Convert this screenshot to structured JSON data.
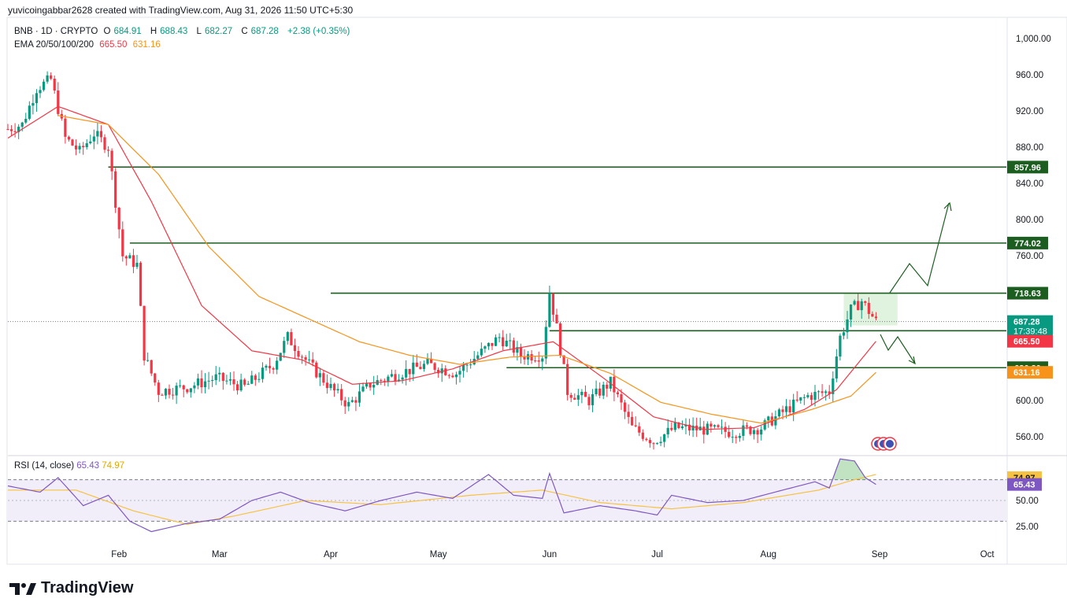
{
  "header": {
    "attribution": "yuvicoingabbar2628 created with TradingView.com, Aug 31, 2026 11:50 UTC+5:30"
  },
  "legend": {
    "symbol": "BNB · 1D · CRYPTO",
    "o_label": "O",
    "o_value": "684.91",
    "h_label": "H",
    "h_value": "688.43",
    "l_label": "L",
    "l_value": "682.27",
    "c_label": "C",
    "c_value": "687.28",
    "change": "+2.38 (+0.35%)",
    "ema_label": "EMA 20/50/100/200",
    "ema1": "665.50",
    "ema2": "631.16"
  },
  "rsi_legend": {
    "label": "RSI (14, close)",
    "rsi": "65.43",
    "ma": "74.97"
  },
  "branding": {
    "name": "TradingView"
  },
  "colors": {
    "up": "#089981",
    "down": "#f23645",
    "ema_fast": "#f23645",
    "ema_slow": "#f7931a",
    "level": "#1b5e20",
    "rsi": "#7e57c2",
    "rsi_ma": "#f5c242",
    "zone": "#d8f0d6"
  },
  "chart_data": [
    {
      "type": "candlestick",
      "symbol": "BNB · 1D · CRYPTO",
      "x_tick_labels": [
        "Feb",
        "Mar",
        "Apr",
        "May",
        "Jun",
        "Jul",
        "Aug",
        "Sep",
        "Oct"
      ],
      "y_tick_labels": [
        "1,000.00",
        "960.00",
        "920.00",
        "880.00",
        "840.00",
        "800.00",
        "760.00",
        "600.00",
        "560.00"
      ],
      "ylim": [
        520,
        1000
      ],
      "close_path": [
        {
          "x": "Jan 01",
          "y": 900
        },
        {
          "x": "Jan 05",
          "y": 905
        },
        {
          "x": "Jan 09",
          "y": 945
        },
        {
          "x": "Jan 13",
          "y": 955
        },
        {
          "x": "Jan 17",
          "y": 890
        },
        {
          "x": "Jan 21",
          "y": 875
        },
        {
          "x": "Jan 25",
          "y": 895
        },
        {
          "x": "Jan 29",
          "y": 880
        },
        {
          "x": "Feb 02",
          "y": 760
        },
        {
          "x": "Feb 06",
          "y": 750
        },
        {
          "x": "Feb 08",
          "y": 650
        },
        {
          "x": "Feb 12",
          "y": 610
        },
        {
          "x": "Feb 20",
          "y": 615
        },
        {
          "x": "Feb 28",
          "y": 625
        },
        {
          "x": "Mar 08",
          "y": 615
        },
        {
          "x": "Mar 16",
          "y": 640
        },
        {
          "x": "Mar 20",
          "y": 670
        },
        {
          "x": "Mar 26",
          "y": 640
        },
        {
          "x": "Apr 02",
          "y": 610
        },
        {
          "x": "Apr 06",
          "y": 595
        },
        {
          "x": "Apr 12",
          "y": 618
        },
        {
          "x": "Apr 20",
          "y": 630
        },
        {
          "x": "Apr 28",
          "y": 640
        },
        {
          "x": "May 06",
          "y": 630
        },
        {
          "x": "May 12",
          "y": 650
        },
        {
          "x": "May 18",
          "y": 670
        },
        {
          "x": "May 24",
          "y": 650
        },
        {
          "x": "May 30",
          "y": 650
        },
        {
          "x": "Jun 01",
          "y": 720
        },
        {
          "x": "Jun 03",
          "y": 680
        },
        {
          "x": "Jun 06",
          "y": 610
        },
        {
          "x": "Jun 12",
          "y": 600
        },
        {
          "x": "Jun 18",
          "y": 620
        },
        {
          "x": "Jun 24",
          "y": 570
        },
        {
          "x": "Jun 30",
          "y": 555
        },
        {
          "x": "Jul 06",
          "y": 570
        },
        {
          "x": "Jul 14",
          "y": 568
        },
        {
          "x": "Jul 22",
          "y": 565
        },
        {
          "x": "Jul 30",
          "y": 570
        },
        {
          "x": "Aug 06",
          "y": 590
        },
        {
          "x": "Aug 12",
          "y": 605
        },
        {
          "x": "Aug 18",
          "y": 610
        },
        {
          "x": "Aug 21",
          "y": 670
        },
        {
          "x": "Aug 24",
          "y": 700
        },
        {
          "x": "Aug 27",
          "y": 710
        },
        {
          "x": "Aug 31",
          "y": 687.28
        }
      ],
      "ema_fast_path": [
        {
          "x": "Jan 01",
          "y": 890
        },
        {
          "x": "Jan 15",
          "y": 925
        },
        {
          "x": "Jan 29",
          "y": 905
        },
        {
          "x": "Feb 10",
          "y": 820
        },
        {
          "x": "Feb 24",
          "y": 705
        },
        {
          "x": "Mar 10",
          "y": 655
        },
        {
          "x": "Mar 24",
          "y": 645
        },
        {
          "x": "Apr 07",
          "y": 618
        },
        {
          "x": "Apr 21",
          "y": 622
        },
        {
          "x": "May 05",
          "y": 635
        },
        {
          "x": "May 19",
          "y": 655
        },
        {
          "x": "Jun 02",
          "y": 665
        },
        {
          "x": "Jun 16",
          "y": 625
        },
        {
          "x": "Jun 30",
          "y": 582
        },
        {
          "x": "Jul 14",
          "y": 568
        },
        {
          "x": "Jul 28",
          "y": 570
        },
        {
          "x": "Aug 11",
          "y": 590
        },
        {
          "x": "Aug 20",
          "y": 612
        },
        {
          "x": "Aug 31",
          "y": 665.5
        }
      ],
      "ema_slow_path": [
        {
          "x": "Jan 15",
          "y": 915
        },
        {
          "x": "Jan 29",
          "y": 905
        },
        {
          "x": "Feb 12",
          "y": 850
        },
        {
          "x": "Feb 26",
          "y": 770
        },
        {
          "x": "Mar 12",
          "y": 715
        },
        {
          "x": "Mar 26",
          "y": 690
        },
        {
          "x": "Apr 09",
          "y": 665
        },
        {
          "x": "Apr 23",
          "y": 650
        },
        {
          "x": "May 07",
          "y": 640
        },
        {
          "x": "May 21",
          "y": 648
        },
        {
          "x": "Jun 04",
          "y": 650
        },
        {
          "x": "Jun 18",
          "y": 630
        },
        {
          "x": "Jul 02",
          "y": 598
        },
        {
          "x": "Jul 16",
          "y": 585
        },
        {
          "x": "Jul 30",
          "y": 575
        },
        {
          "x": "Aug 13",
          "y": 590
        },
        {
          "x": "Aug 24",
          "y": 605
        },
        {
          "x": "Aug 31",
          "y": 631.16
        }
      ],
      "levels": [
        {
          "value": 857.96,
          "label": "857.96"
        },
        {
          "value": 774.02,
          "label": "774.02"
        },
        {
          "value": 718.63,
          "label": "718.63"
        },
        {
          "value": 677.16,
          "label": "677.16"
        },
        {
          "value": 636.3,
          "label": "636.30"
        }
      ],
      "price_tags": [
        {
          "label": "687.28",
          "sub": "17:39:48",
          "color": "#089981"
        },
        {
          "label": "665.50",
          "color": "#f23645"
        },
        {
          "label": "631.16",
          "color": "#f7931a"
        }
      ]
    },
    {
      "type": "line",
      "name": "RSI (14, close)",
      "y_tick_labels": [
        "50.00",
        "25.00"
      ],
      "band": [
        30,
        70
      ],
      "tags": [
        {
          "label": "74.97",
          "color": "#f5c242"
        },
        {
          "label": "65.43",
          "color": "#7e57c2"
        }
      ],
      "rsi_path": [
        {
          "x": "Jan 01",
          "y": 64
        },
        {
          "x": "Jan 10",
          "y": 58
        },
        {
          "x": "Jan 15",
          "y": 72
        },
        {
          "x": "Jan 22",
          "y": 45
        },
        {
          "x": "Jan 29",
          "y": 55
        },
        {
          "x": "Feb 04",
          "y": 30
        },
        {
          "x": "Feb 10",
          "y": 20
        },
        {
          "x": "Feb 20",
          "y": 28
        },
        {
          "x": "Mar 01",
          "y": 32
        },
        {
          "x": "Mar 10",
          "y": 50
        },
        {
          "x": "Mar 18",
          "y": 58
        },
        {
          "x": "Mar 26",
          "y": 48
        },
        {
          "x": "Apr 05",
          "y": 40
        },
        {
          "x": "Apr 15",
          "y": 50
        },
        {
          "x": "Apr 25",
          "y": 58
        },
        {
          "x": "May 05",
          "y": 52
        },
        {
          "x": "May 15",
          "y": 75
        },
        {
          "x": "May 22",
          "y": 55
        },
        {
          "x": "May 30",
          "y": 52
        },
        {
          "x": "Jun 01",
          "y": 76
        },
        {
          "x": "Jun 05",
          "y": 38
        },
        {
          "x": "Jun 15",
          "y": 45
        },
        {
          "x": "Jun 25",
          "y": 40
        },
        {
          "x": "Jul 01",
          "y": 36
        },
        {
          "x": "Jul 05",
          "y": 55
        },
        {
          "x": "Jul 15",
          "y": 48
        },
        {
          "x": "Jul 25",
          "y": 50
        },
        {
          "x": "Aug 05",
          "y": 60
        },
        {
          "x": "Aug 14",
          "y": 68
        },
        {
          "x": "Aug 18",
          "y": 62
        },
        {
          "x": "Aug 21",
          "y": 90
        },
        {
          "x": "Aug 25",
          "y": 88
        },
        {
          "x": "Aug 28",
          "y": 72
        },
        {
          "x": "Aug 31",
          "y": 65.43
        }
      ],
      "rsi_ma_path": [
        {
          "x": "Jan 01",
          "y": 60
        },
        {
          "x": "Jan 20",
          "y": 60
        },
        {
          "x": "Feb 05",
          "y": 40
        },
        {
          "x": "Feb 20",
          "y": 27
        },
        {
          "x": "Mar 05",
          "y": 35
        },
        {
          "x": "Mar 25",
          "y": 50
        },
        {
          "x": "Apr 15",
          "y": 46
        },
        {
          "x": "May 10",
          "y": 55
        },
        {
          "x": "May 30",
          "y": 60
        },
        {
          "x": "Jun 15",
          "y": 48
        },
        {
          "x": "Jul 05",
          "y": 42
        },
        {
          "x": "Jul 25",
          "y": 48
        },
        {
          "x": "Aug 15",
          "y": 60
        },
        {
          "x": "Aug 25",
          "y": 70
        },
        {
          "x": "Aug 31",
          "y": 74.97
        }
      ]
    }
  ]
}
